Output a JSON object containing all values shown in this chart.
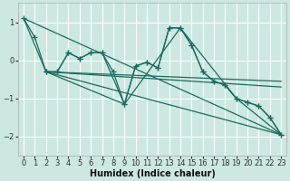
{
  "xlabel": "Humidex (Indice chaleur)",
  "background_color": "#cce8e0",
  "grid_color": "#ffffff",
  "line_color": "#1a6b60",
  "xlim": [
    -0.5,
    23.5
  ],
  "ylim": [
    -2.5,
    1.5
  ],
  "yticks": [
    -2,
    -1,
    0,
    1
  ],
  "xticks": [
    0,
    1,
    2,
    3,
    4,
    5,
    6,
    7,
    8,
    9,
    10,
    11,
    12,
    13,
    14,
    15,
    16,
    17,
    18,
    19,
    20,
    21,
    22,
    23
  ],
  "series": [
    {
      "x": [
        0,
        1,
        2,
        3,
        4,
        5,
        6,
        7,
        8,
        9,
        10,
        11,
        12,
        13,
        14,
        15,
        16,
        17,
        18,
        19,
        20,
        21,
        22,
        23
      ],
      "y": [
        1.1,
        0.6,
        -0.3,
        -0.3,
        0.2,
        0.05,
        0.2,
        0.2,
        -0.3,
        -1.15,
        -0.15,
        -0.05,
        -0.2,
        0.85,
        0.85,
        0.4,
        -0.3,
        -0.55,
        -0.65,
        -1.0,
        -1.1,
        -1.2,
        -1.5,
        -1.95
      ],
      "marker": true
    },
    {
      "x": [
        2,
        3,
        4,
        5,
        6,
        7,
        9,
        10,
        11,
        12,
        13,
        14,
        15,
        16,
        17,
        18,
        19,
        20,
        21,
        22,
        23
      ],
      "y": [
        -0.3,
        -0.3,
        0.2,
        0.05,
        0.2,
        0.2,
        -1.15,
        -0.15,
        -0.05,
        -0.2,
        0.85,
        0.85,
        0.4,
        -0.3,
        -0.55,
        -0.65,
        -1.0,
        -1.1,
        -1.2,
        -1.5,
        -1.95
      ],
      "marker": true
    },
    {
      "x": [
        0,
        2,
        9,
        14,
        19,
        23
      ],
      "y": [
        1.1,
        -0.3,
        -1.15,
        0.85,
        -1.0,
        -1.95
      ],
      "marker": false
    },
    {
      "x": [
        0,
        23
      ],
      "y": [
        1.1,
        -1.95
      ],
      "marker": false
    },
    {
      "x": [
        2,
        23
      ],
      "y": [
        -0.3,
        -1.95
      ],
      "marker": false
    },
    {
      "x": [
        2,
        23
      ],
      "y": [
        -0.3,
        -0.7
      ],
      "marker": false
    },
    {
      "x": [
        2,
        23
      ],
      "y": [
        -0.3,
        -0.55
      ],
      "marker": false
    }
  ]
}
